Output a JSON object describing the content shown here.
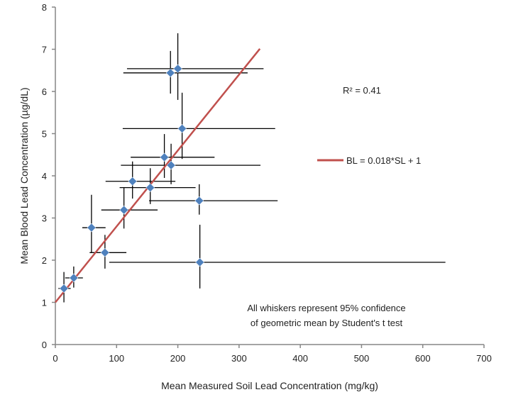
{
  "chart_data": {
    "type": "scatter",
    "title": "",
    "xlabel": "Mean Measured Soil Lead Concentration (mg/kg)",
    "ylabel": "Mean Blood Lead Concentration (µg/dL)",
    "xlim": [
      0,
      700
    ],
    "ylim": [
      0,
      8
    ],
    "xticks": [
      "0",
      "100",
      "200",
      "300",
      "400",
      "500",
      "600",
      "700"
    ],
    "yticks": [
      "0",
      "1",
      "2",
      "3",
      "4",
      "5",
      "6",
      "7",
      "8"
    ],
    "grid": false,
    "marker_color": "#4F81BD",
    "trend_color": "#C0504D",
    "points": [
      {
        "x": 14,
        "y": 1.33,
        "xlo": 5,
        "xhi": 25,
        "ylo": 1.0,
        "yhi": 1.72
      },
      {
        "x": 30,
        "y": 1.58,
        "xlo": 16,
        "xhi": 45,
        "ylo": 1.35,
        "yhi": 1.85
      },
      {
        "x": 59,
        "y": 2.77,
        "xlo": 44,
        "xhi": 82,
        "ylo": 2.17,
        "yhi": 3.55
      },
      {
        "x": 81,
        "y": 2.18,
        "xlo": 56,
        "xhi": 116,
        "ylo": 1.8,
        "yhi": 2.6
      },
      {
        "x": 112,
        "y": 3.19,
        "xlo": 75,
        "xhi": 167,
        "ylo": 2.75,
        "yhi": 3.73
      },
      {
        "x": 155,
        "y": 3.72,
        "xlo": 105,
        "xhi": 229,
        "ylo": 3.33,
        "yhi": 4.18
      },
      {
        "x": 126,
        "y": 3.87,
        "xlo": 82,
        "xhi": 196,
        "ylo": 3.46,
        "yhi": 4.34
      },
      {
        "x": 235,
        "y": 3.41,
        "xlo": 153,
        "xhi": 363,
        "ylo": 3.08,
        "yhi": 3.8
      },
      {
        "x": 236,
        "y": 1.95,
        "xlo": 88,
        "xhi": 637,
        "ylo": 1.33,
        "yhi": 2.84
      },
      {
        "x": 178,
        "y": 4.44,
        "xlo": 123,
        "xhi": 260,
        "ylo": 3.95,
        "yhi": 4.99
      },
      {
        "x": 189,
        "y": 4.25,
        "xlo": 107,
        "xhi": 335,
        "ylo": 3.8,
        "yhi": 4.76
      },
      {
        "x": 207,
        "y": 5.12,
        "xlo": 110,
        "xhi": 359,
        "ylo": 4.4,
        "yhi": 5.97
      },
      {
        "x": 188,
        "y": 6.44,
        "xlo": 111,
        "xhi": 314,
        "ylo": 5.95,
        "yhi": 6.96
      },
      {
        "x": 200,
        "y": 6.54,
        "xlo": 117,
        "xhi": 340,
        "ylo": 5.8,
        "yhi": 7.38
      }
    ],
    "trendline": {
      "slope": 0.018,
      "intercept": 1,
      "x_range": [
        0,
        334
      ]
    },
    "legend": {
      "label": "BL = 0.018*SL + 1",
      "placement": "right-middle"
    },
    "annotations": {
      "r2": "R² = 0.41",
      "note_line1": "All whiskers represent 95% confidence",
      "note_line2": "of geometric mean by Student's t test"
    }
  }
}
